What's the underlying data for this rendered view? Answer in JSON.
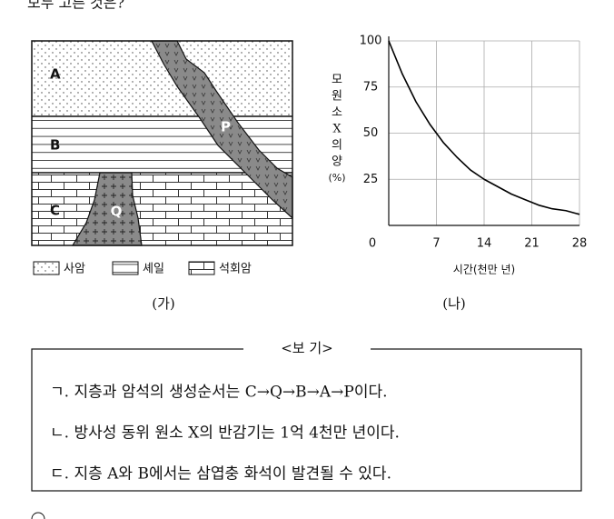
{
  "header": {
    "text": "모두 고른 것은?"
  },
  "diagram": {
    "labels": {
      "A": "A",
      "B": "B",
      "C": "C",
      "P": "P",
      "Q": "Q"
    },
    "legend": [
      "사암",
      "셰일",
      "석회암"
    ],
    "caption": "(가)"
  },
  "chart_data": {
    "type": "line",
    "caption": "(나)",
    "ylabel": [
      "모",
      "원",
      "소",
      "X",
      "의",
      "양",
      "(%)"
    ],
    "xlabel": "시간(천만 년)",
    "x": [
      0,
      2,
      4,
      6,
      8,
      10,
      12,
      14,
      16,
      18,
      20,
      22,
      24,
      26,
      28
    ],
    "values": [
      100,
      82,
      67,
      55,
      45,
      37,
      30,
      25,
      21,
      17,
      14,
      11,
      9,
      8,
      6
    ],
    "color": "#000000",
    "xlim": [
      0,
      28
    ],
    "ylim": [
      0,
      100
    ],
    "xticks": [
      0,
      7,
      14,
      21,
      28
    ],
    "yticks": [
      25,
      50,
      75,
      100
    ],
    "grid": true
  },
  "box": {
    "title": "<보  기>",
    "items": [
      "ㄱ. 지층과 암석의 생성순서는 C→Q→B→A→P이다.",
      "ㄴ. 방사성 동위 원소 X의 반감기는 1억 4천만 년이다.",
      "ㄷ. 지층 A와 B에서는 삼엽충 화석이 발견될 수 있다."
    ]
  }
}
